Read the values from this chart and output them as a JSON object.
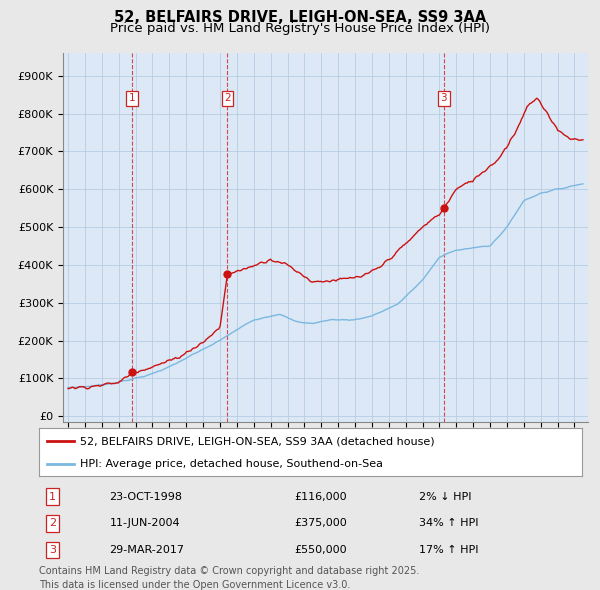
{
  "title1": "52, BELFAIRS DRIVE, LEIGH-ON-SEA, SS9 3AA",
  "title2": "Price paid vs. HM Land Registry's House Price Index (HPI)",
  "yticks": [
    0,
    100000,
    200000,
    300000,
    400000,
    500000,
    600000,
    700000,
    800000,
    900000
  ],
  "ytick_labels": [
    "£0",
    "£100K",
    "£200K",
    "£300K",
    "£400K",
    "£500K",
    "£600K",
    "£700K",
    "£800K",
    "£900K"
  ],
  "ylim": [
    -15000,
    960000
  ],
  "xlim_start": 1994.7,
  "xlim_end": 2025.8,
  "hpi_color": "#7ab8e0",
  "price_color": "#cc1111",
  "sale_dates": [
    1998.81,
    2004.44,
    2017.25
  ],
  "sale_prices": [
    116000,
    375000,
    550000
  ],
  "sale_labels": [
    "1",
    "2",
    "3"
  ],
  "sale_info": [
    {
      "label": "1",
      "date": "23-OCT-1998",
      "price": "£116,000",
      "hpi": "2% ↓ HPI"
    },
    {
      "label": "2",
      "date": "11-JUN-2004",
      "price": "£375,000",
      "hpi": "34% ↑ HPI"
    },
    {
      "label": "3",
      "date": "29-MAR-2017",
      "price": "£550,000",
      "hpi": "17% ↑ HPI"
    }
  ],
  "legend_line1": "52, BELFAIRS DRIVE, LEIGH-ON-SEA, SS9 3AA (detached house)",
  "legend_line2": "HPI: Average price, detached house, Southend-on-Sea",
  "footnote": "Contains HM Land Registry data © Crown copyright and database right 2025.\nThis data is licensed under the Open Government Licence v3.0.",
  "bg_color": "#e8e8e8",
  "plot_bg_color": "#dce8f5",
  "grid_color": "#b0c8e0",
  "vline_color": "#cc2222",
  "title_fontsize": 10.5,
  "subtitle_fontsize": 9.5,
  "tick_fontsize": 8,
  "legend_fontsize": 8,
  "footnote_fontsize": 7
}
